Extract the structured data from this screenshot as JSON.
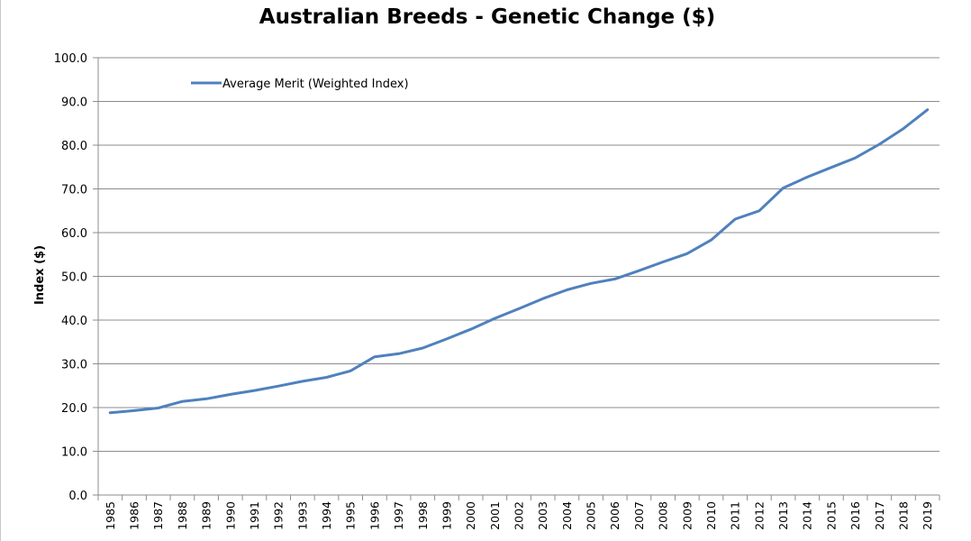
{
  "chart_data": {
    "type": "line",
    "title": "Australian Breeds - Genetic Change ($)",
    "xlabel": "",
    "ylabel": "Index ($)",
    "ylim": [
      0,
      100
    ],
    "y_ticks": [
      "0.0",
      "10.0",
      "20.0",
      "30.0",
      "40.0",
      "50.0",
      "60.0",
      "70.0",
      "80.0",
      "90.0",
      "100.0"
    ],
    "grid": true,
    "legend_position": "top-left",
    "categories": [
      "1985",
      "1986",
      "1987",
      "1988",
      "1989",
      "1990",
      "1991",
      "1992",
      "1993",
      "1994",
      "1995",
      "1996",
      "1997",
      "1998",
      "1999",
      "2000",
      "2001",
      "2002",
      "2003",
      "2004",
      "2005",
      "2006",
      "2007",
      "2008",
      "2009",
      "2010",
      "2011",
      "2012",
      "2013",
      "2014",
      "2015",
      "2016",
      "2017",
      "2018",
      "2019"
    ],
    "series": [
      {
        "name": "Average Merit (Weighted Index)",
        "color": "#4f81bd",
        "values": [
          18.8,
          19.3,
          19.9,
          21.4,
          22.0,
          23.0,
          23.9,
          24.9,
          26.0,
          26.9,
          28.4,
          31.6,
          32.3,
          33.6,
          35.7,
          37.9,
          40.4,
          42.6,
          44.9,
          46.9,
          48.4,
          49.4,
          51.3,
          53.3,
          55.2,
          58.3,
          63.1,
          65.0,
          70.2,
          72.7,
          74.9,
          77.1,
          80.2,
          83.8,
          88.1
        ]
      }
    ]
  }
}
